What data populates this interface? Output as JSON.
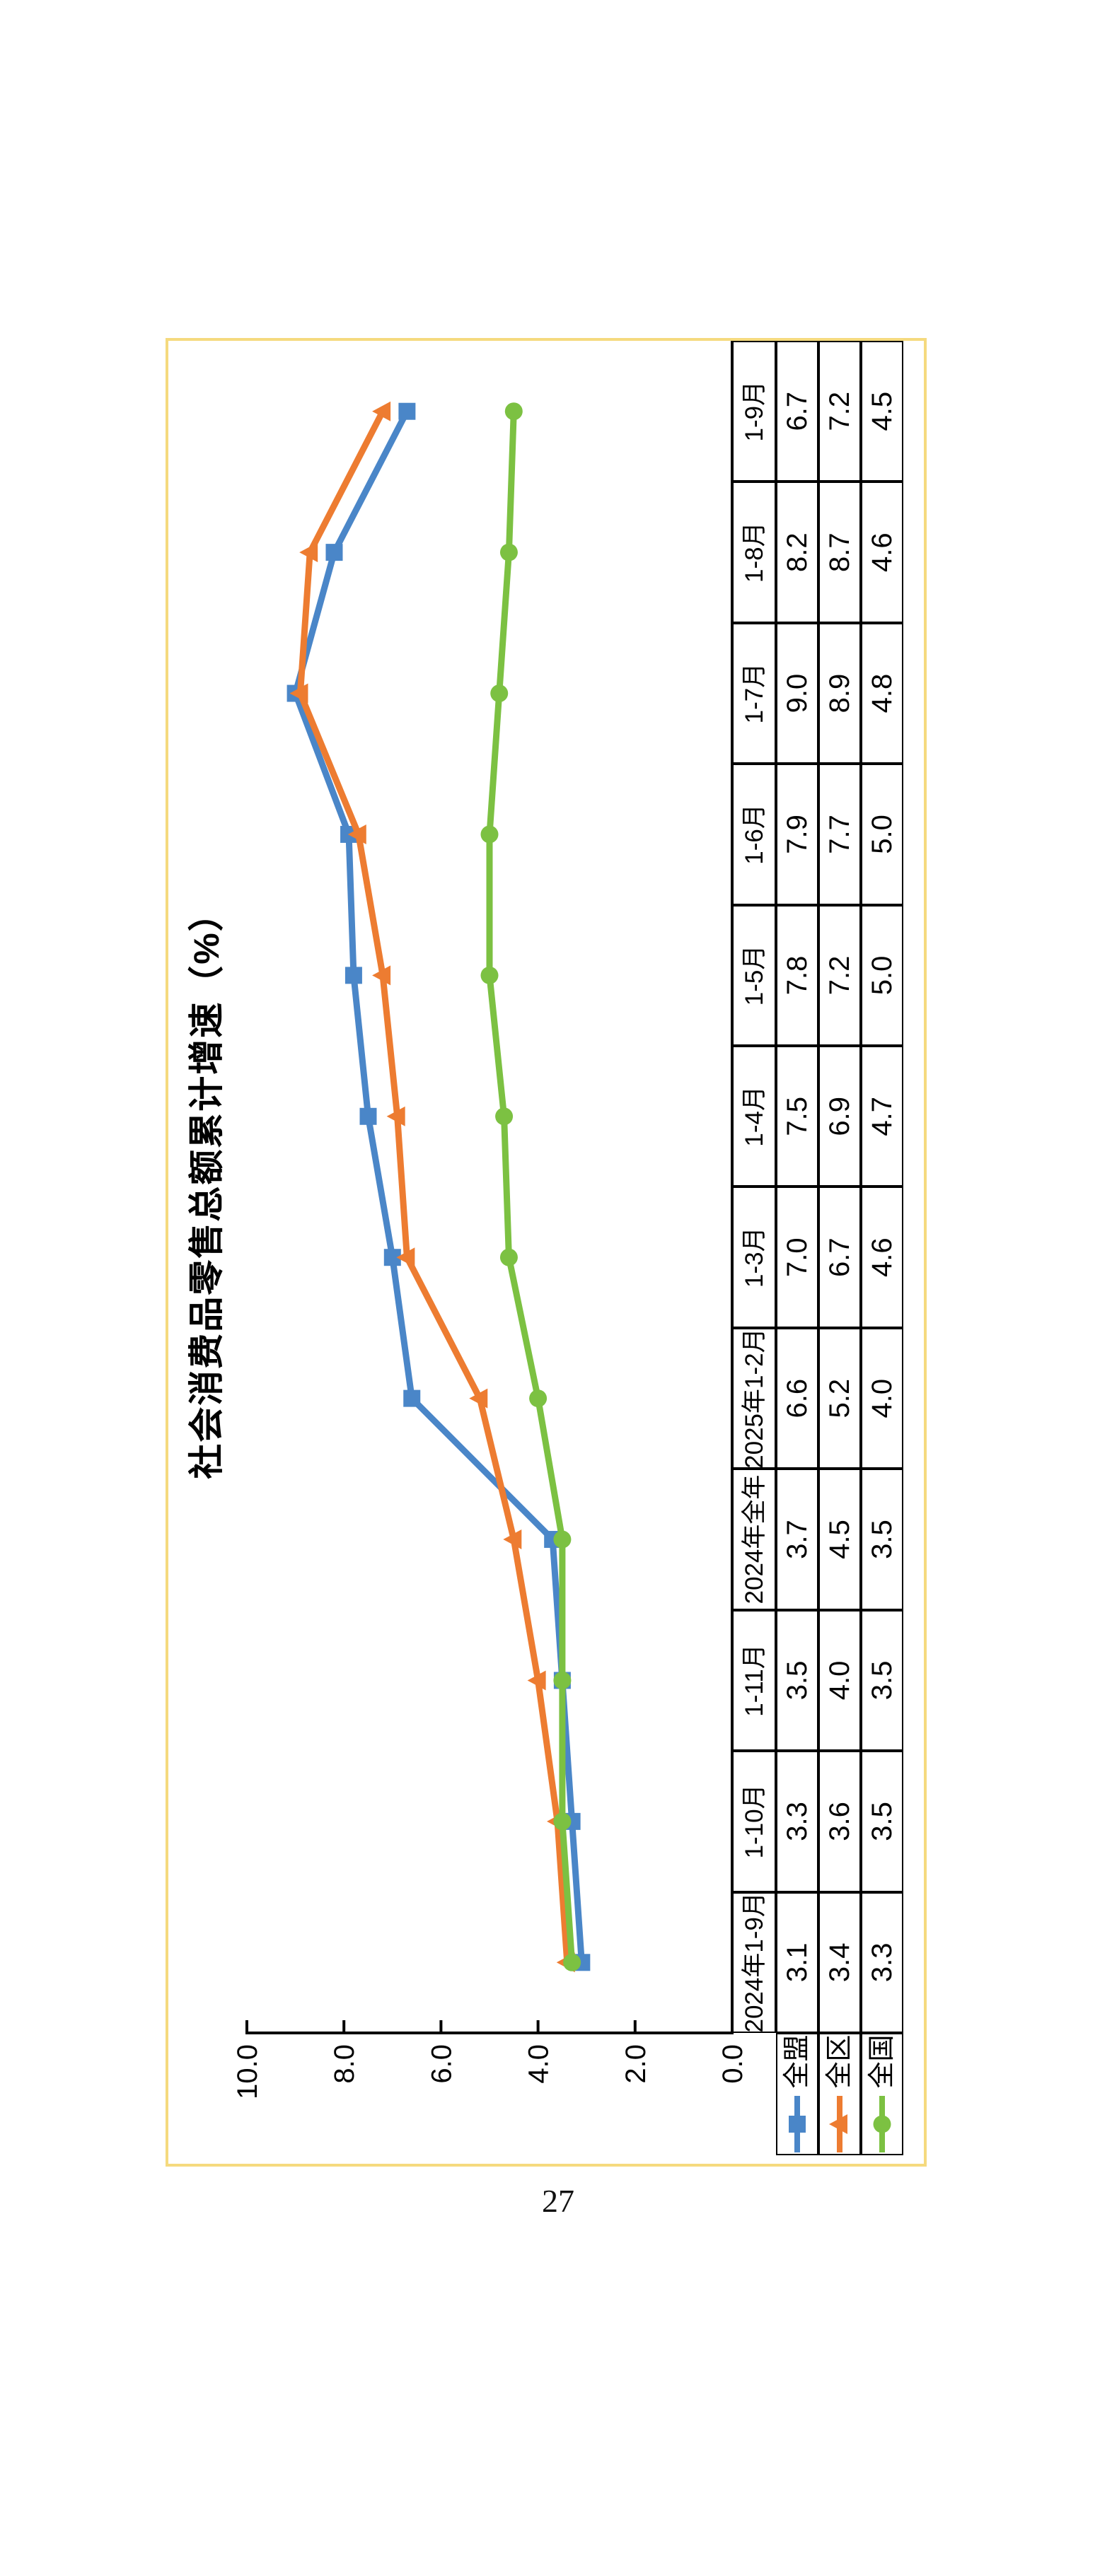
{
  "page": {
    "number": "27"
  },
  "chart": {
    "title": "社会消费品零售总额累计增速（%）",
    "frame_border_color": "#F5DA7E",
    "axis_color": "#000000",
    "rotation_deg": -90
  },
  "chart_data": {
    "type": "line",
    "title": "社会消费品零售总额累计增速（%）",
    "categories": [
      "2024年1-9月",
      "1-10月",
      "1-11月",
      "2024年全年",
      "2025年1-2月",
      "1-3月",
      "1-4月",
      "1-5月",
      "1-6月",
      "1-7月",
      "1-8月",
      "1-9月"
    ],
    "series": [
      {
        "name": "全盟",
        "color": "#4A86C8",
        "marker": "square",
        "values": [
          3.1,
          3.3,
          3.5,
          3.7,
          6.6,
          7.0,
          7.5,
          7.8,
          7.9,
          9.0,
          8.2,
          6.7
        ]
      },
      {
        "name": "全区",
        "color": "#ED7C31",
        "marker": "triangle",
        "values": [
          3.4,
          3.6,
          4.0,
          4.5,
          5.2,
          6.7,
          6.9,
          7.2,
          7.7,
          8.9,
          8.7,
          7.2
        ]
      },
      {
        "name": "全国",
        "color": "#7CC142",
        "marker": "circle",
        "values": [
          3.3,
          3.5,
          3.5,
          3.5,
          4.0,
          4.6,
          4.7,
          5.0,
          5.0,
          4.8,
          4.6,
          4.5
        ]
      }
    ],
    "yticks": [
      "0.0",
      "2.0",
      "4.0",
      "6.0",
      "8.0",
      "10.0"
    ],
    "ylim": [
      0,
      10
    ],
    "xlabel": "",
    "ylabel": "",
    "grid": false,
    "legend_position": "data-table-left-column",
    "value_format": "0.0"
  }
}
